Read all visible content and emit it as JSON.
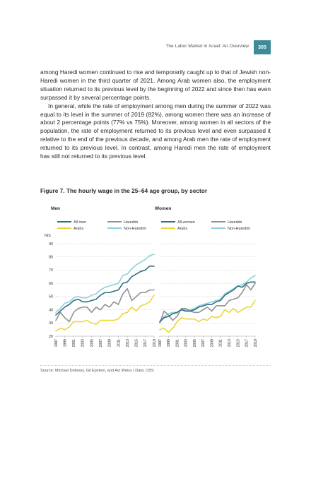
{
  "header": {
    "running_title": "The Labor Market in Israel: An Overview",
    "page_number": "305"
  },
  "body": {
    "paragraph1": "among Haredi women continued to rise and temporarily caught up to that of Jewish non-Haredi women in the third quarter of 2021. Among Arab women also, the employment situation returned to its previous level by the beginning of 2022 and since then has even surpassed it by several percentage points.",
    "paragraph2": "In general, while the rate of employment among men during the summer of 2022 was equal to its level in the summer of 2019 (82%), among women there was an increase of about 2 percentage points (77% vs 75%). Moreover, among women in all sectors of the population, the rate of employment returned to its previous level and even surpassed it relative to the end of the previous decade, and among Arab men the rate of employment returned to its previous level. In contrast, among Haredi men the rate of employment has still not returned to its previous level."
  },
  "figure": {
    "title": "Figure 7. The hourly wage in the 25–64 age group, by sector",
    "source": "Source: Michael Debowy, Gil Epstein, and Avi Weiss | Data: CBS"
  },
  "colors": {
    "all": "#2f6f7e",
    "haredim": "#929292",
    "arabs": "#ecd737",
    "non_haredim": "#8fd0dc",
    "page_badge": "#3e8a98"
  },
  "chart_data": [
    {
      "type": "line",
      "title": "Men",
      "ylabel": "NIS",
      "ylim": [
        20,
        90
      ],
      "yticks": [
        20,
        30,
        40,
        50,
        60,
        70,
        80,
        90
      ],
      "x": [
        1997,
        1998,
        1999,
        2000,
        2001,
        2002,
        2003,
        2004,
        2005,
        2006,
        2007,
        2008,
        2009,
        2010,
        2011,
        2012,
        2013,
        2014,
        2015,
        2016,
        2017,
        2018,
        2019
      ],
      "xtick_labels": [
        "1997",
        "1999",
        "2001",
        "2003",
        "2005",
        "2007",
        "2009",
        "2011",
        "2013",
        "2015",
        "2017",
        "2019"
      ],
      "grid": true,
      "legend_position": "top",
      "series": [
        {
          "name": "All men",
          "color_key": "all",
          "values": [
            36,
            39,
            42,
            44,
            47,
            48,
            46,
            46,
            47,
            48,
            51,
            53,
            53,
            54,
            55,
            60,
            61,
            65,
            67,
            69,
            70,
            73,
            73
          ]
        },
        {
          "name": "Haredim",
          "color_key": "haredim",
          "values": [
            32,
            38,
            34,
            31,
            38,
            41,
            42,
            42,
            38,
            42,
            40,
            44,
            42,
            46,
            44,
            52,
            56,
            47,
            50,
            53,
            53,
            55,
            55
          ]
        },
        {
          "name": "Arabs",
          "color_key": "arabs",
          "values": [
            24,
            26,
            25,
            27,
            31,
            31,
            31,
            32,
            30,
            29,
            32,
            32,
            32,
            32,
            33,
            37,
            38,
            42,
            39,
            43,
            44,
            46,
            51
          ]
        },
        {
          "name": "Non-Haredim",
          "color_key": "non_haredim",
          "values": [
            38,
            41,
            45,
            46,
            49,
            50,
            49,
            49,
            51,
            52,
            55,
            57,
            58,
            59,
            60,
            66,
            67,
            71,
            74,
            76,
            78,
            81,
            82
          ]
        }
      ]
    },
    {
      "type": "line",
      "title": "Women",
      "ylim": [
        20,
        90
      ],
      "x": [
        1997,
        1998,
        1999,
        2000,
        2001,
        2002,
        2003,
        2004,
        2005,
        2006,
        2007,
        2008,
        2009,
        2010,
        2011,
        2012,
        2013,
        2014,
        2015,
        2016,
        2017,
        2018,
        2019
      ],
      "xtick_labels": [
        "1997",
        "1999",
        "2001",
        "2003",
        "2005",
        "2007",
        "2009",
        "2011",
        "2013",
        "2015",
        "2017",
        "2019"
      ],
      "grid": true,
      "legend_position": "top",
      "series": [
        {
          "name": "All women",
          "color_key": "all",
          "values": [
            31,
            34,
            35,
            37,
            38,
            40,
            39,
            39,
            40,
            42,
            43,
            44,
            44,
            46,
            47,
            51,
            53,
            55,
            58,
            57,
            60,
            61,
            61
          ]
        },
        {
          "name": "Haredim",
          "color_key": "haredim",
          "values": [
            30,
            39,
            36,
            32,
            35,
            41,
            41,
            39,
            38,
            38,
            40,
            42,
            39,
            43,
            43,
            43,
            47,
            48,
            49,
            53,
            59,
            55,
            60
          ]
        },
        {
          "name": "Arabs",
          "color_key": "arabs",
          "values": [
            25,
            26,
            23,
            26,
            31,
            34,
            33,
            33,
            33,
            31,
            33,
            32,
            35,
            34,
            35,
            40,
            38,
            41,
            38,
            40,
            42,
            42,
            47
          ]
        },
        {
          "name": "Non-Haredim",
          "color_key": "non_haredim",
          "values": [
            30,
            35,
            37,
            38,
            38,
            40,
            40,
            40,
            41,
            43,
            44,
            45,
            46,
            47,
            48,
            52,
            54,
            56,
            58,
            59,
            61,
            64,
            66
          ]
        }
      ]
    }
  ]
}
